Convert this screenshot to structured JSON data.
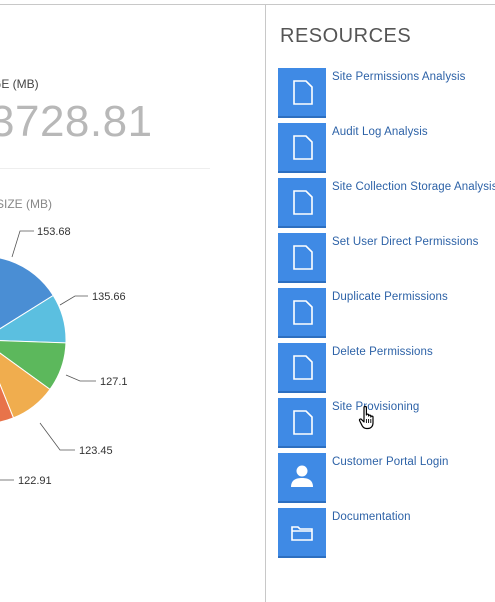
{
  "storage": {
    "label": "GE (MB)",
    "value": "3728.81"
  },
  "chart_title": "SIZE (MB)",
  "chart_data": {
    "type": "pie",
    "title": "SIZE (MB)",
    "labels_visible": [
      "153.68",
      "135.66",
      "127.1",
      "123.45",
      "122.91"
    ],
    "slices": [
      {
        "value": 153.68,
        "color": "#4a8ed4"
      },
      {
        "value": 135.66,
        "color": "#5bbfe0"
      },
      {
        "value": 127.1,
        "color": "#5cb85c"
      },
      {
        "value": 123.45,
        "color": "#f0ad4e"
      },
      {
        "value": 122.91,
        "color": "#e8734a"
      }
    ]
  },
  "resources": {
    "heading": "RESOURCES",
    "items": [
      {
        "label": "Site Permissions Analysis",
        "icon": "document-icon"
      },
      {
        "label": "Audit Log Analysis",
        "icon": "document-icon"
      },
      {
        "label": "Site Collection Storage Analysis",
        "icon": "document-icon"
      },
      {
        "label": "Set User Direct Permissions",
        "icon": "document-icon"
      },
      {
        "label": "Duplicate Permissions",
        "icon": "document-icon"
      },
      {
        "label": "Delete Permissions",
        "icon": "document-icon"
      },
      {
        "label": "Site Provisioning",
        "icon": "document-icon"
      },
      {
        "label": "Customer Portal Login",
        "icon": "user-icon"
      },
      {
        "label": "Documentation",
        "icon": "folder-icon"
      }
    ]
  },
  "colors": {
    "tile": "#3f8ae5",
    "link": "#2d62a7",
    "value": "#b8b8b8"
  }
}
